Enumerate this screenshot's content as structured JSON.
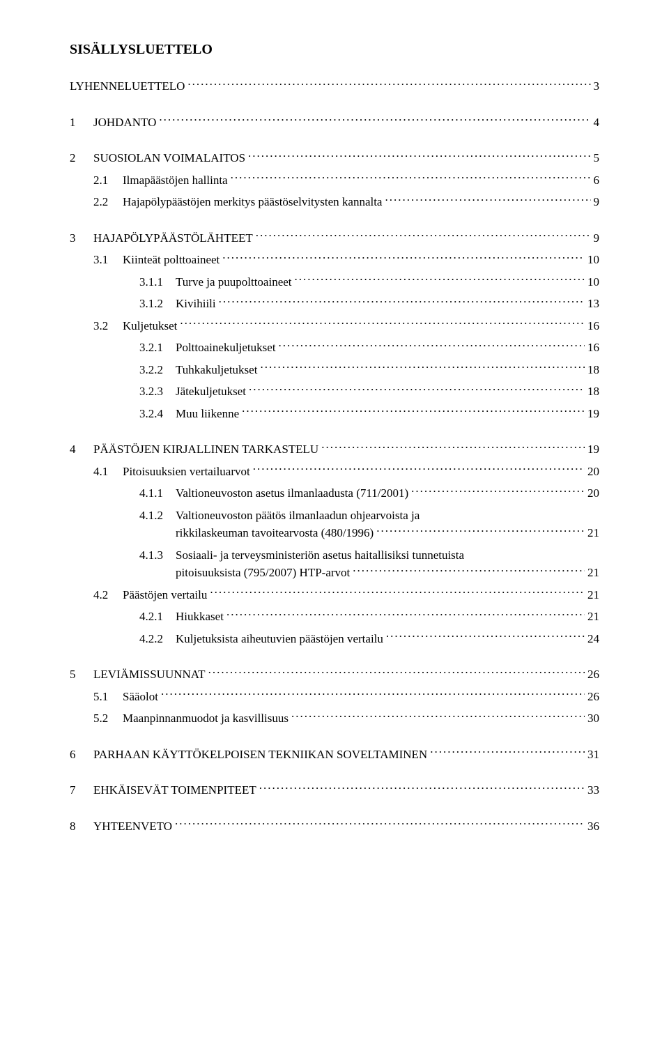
{
  "page_title": "SISÄLLYSLUETTELO",
  "colors": {
    "text": "#000000",
    "background": "#ffffff"
  },
  "font": {
    "family": "Times New Roman",
    "title_size_pt": 15,
    "body_size_pt": 12.5
  },
  "toc": [
    {
      "level": 0,
      "num": "",
      "label": "LYHENNELUETTELO",
      "page": "3"
    },
    {
      "level": 1,
      "num": "1",
      "label": "JOHDANTO",
      "page": "4"
    },
    {
      "level": 1,
      "num": "2",
      "label": "SUOSIOLAN VOIMALAITOS",
      "page": "5"
    },
    {
      "level": 2,
      "num": "2.1",
      "label": "Ilmapäästöjen hallinta",
      "page": "6"
    },
    {
      "level": 2,
      "num": "2.2",
      "label": "Hajapölypäästöjen merkitys päästöselvitysten kannalta",
      "page": "9"
    },
    {
      "level": 1,
      "num": "3",
      "label": "HAJAPÖLYPÄÄSTÖLÄHTEET",
      "page": "9"
    },
    {
      "level": 2,
      "num": "3.1",
      "label": "Kiinteät polttoaineet",
      "page": "10"
    },
    {
      "level": 3,
      "num": "3.1.1",
      "label": "Turve ja puupolttoaineet",
      "page": "10"
    },
    {
      "level": 3,
      "num": "3.1.2",
      "label": "Kivihiili",
      "page": "13"
    },
    {
      "level": 2,
      "num": "3.2",
      "label": "Kuljetukset",
      "page": "16"
    },
    {
      "level": 3,
      "num": "3.2.1",
      "label": "Polttoainekuljetukset",
      "page": "16"
    },
    {
      "level": 3,
      "num": "3.2.2",
      "label": "Tuhkakuljetukset",
      "page": "18"
    },
    {
      "level": 3,
      "num": "3.2.3",
      "label": "Jätekuljetukset",
      "page": "18"
    },
    {
      "level": 3,
      "num": "3.2.4",
      "label": "Muu liikenne",
      "page": "19"
    },
    {
      "level": 1,
      "num": "4",
      "label": "PÄÄSTÖJEN KIRJALLINEN TARKASTELU",
      "page": "19"
    },
    {
      "level": 2,
      "num": "4.1",
      "label": "Pitoisuuksien vertailuarvot",
      "page": "20"
    },
    {
      "level": 3,
      "num": "4.1.1",
      "label": "Valtioneuvoston asetus ilmanlaadusta (711/2001)",
      "page": "20"
    },
    {
      "level": 3,
      "num": "4.1.2",
      "label_line1": "Valtioneuvoston   päätös   ilmanlaadun   ohjearvoista   ja",
      "label_line2": "rikkilaskeuman tavoitearvosta (480/1996)",
      "page": "21",
      "multiline": true
    },
    {
      "level": 3,
      "num": "4.1.3",
      "label_line1": "Sosiaali-  ja  terveysministeriön  asetus  haitallisiksi  tunnetuista",
      "label_line2": "pitoisuuksista (795/2007) HTP-arvot",
      "page": "21",
      "multiline": true
    },
    {
      "level": 2,
      "num": "4.2",
      "label": "Päästöjen vertailu",
      "page": "21"
    },
    {
      "level": 3,
      "num": "4.2.1",
      "label": "Hiukkaset",
      "page": "21"
    },
    {
      "level": 3,
      "num": "4.2.2",
      "label": "Kuljetuksista aiheutuvien päästöjen vertailu",
      "page": "24"
    },
    {
      "level": 1,
      "num": "5",
      "label": "LEVIÄMISSUUNNAT",
      "page": "26"
    },
    {
      "level": 2,
      "num": "5.1",
      "label": "Sääolot",
      "page": "26"
    },
    {
      "level": 2,
      "num": "5.2",
      "label": "Maanpinnanmuodot ja kasvillisuus",
      "page": "30"
    },
    {
      "level": 1,
      "num": "6",
      "label": "PARHAAN KÄYTTÖKELPOISEN TEKNIIKAN SOVELTAMINEN",
      "page": "31"
    },
    {
      "level": 1,
      "num": "7",
      "label": "EHKÄISEVÄT TOIMENPITEET",
      "page": "33"
    },
    {
      "level": 1,
      "num": "8",
      "label": "YHTEENVETO",
      "page": "36"
    }
  ]
}
